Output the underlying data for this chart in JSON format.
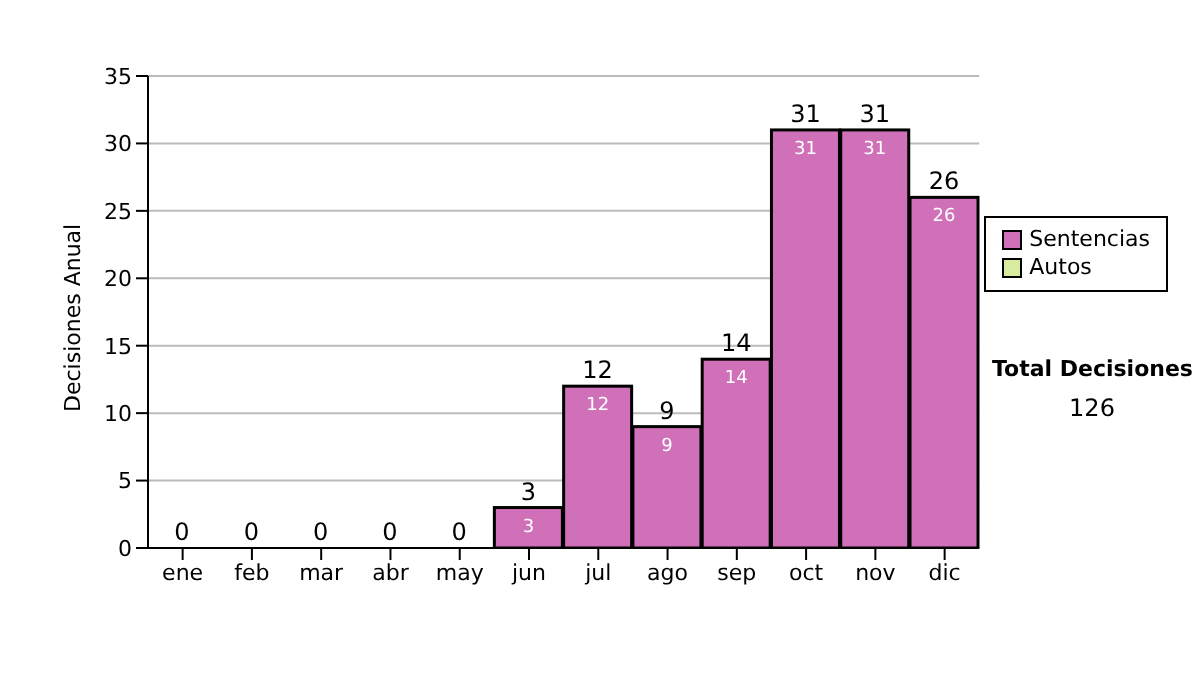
{
  "chart_data": {
    "type": "bar",
    "stacked": true,
    "ylabel": "Decisiones Anual",
    "categories": [
      "ene",
      "feb",
      "mar",
      "abr",
      "may",
      "jun",
      "jul",
      "ago",
      "sep",
      "oct",
      "nov",
      "dic"
    ],
    "series": [
      {
        "name": "Sentencias",
        "color": "#d070b8",
        "values": [
          0,
          0,
          0,
          0,
          0,
          3,
          12,
          9,
          14,
          31,
          31,
          26
        ],
        "value_labels": [
          null,
          null,
          null,
          null,
          null,
          "3",
          "12",
          "9",
          "14",
          "31",
          "31",
          "26"
        ]
      },
      {
        "name": "Autos",
        "color": "#d8eca0",
        "values": [
          0,
          0,
          0,
          0,
          0,
          0,
          0,
          0,
          0,
          0,
          0,
          0
        ]
      }
    ],
    "totals": [
      "0",
      "0",
      "0",
      "0",
      "0",
      "3",
      "12",
      "9",
      "14",
      "31",
      "31",
      "26"
    ],
    "ylim": [
      0,
      35
    ],
    "yticks": [
      0,
      5,
      10,
      15,
      20,
      25,
      30,
      35
    ],
    "grid": "y",
    "legend": "right",
    "annotations": [
      "Total Decisiones",
      "126"
    ]
  }
}
